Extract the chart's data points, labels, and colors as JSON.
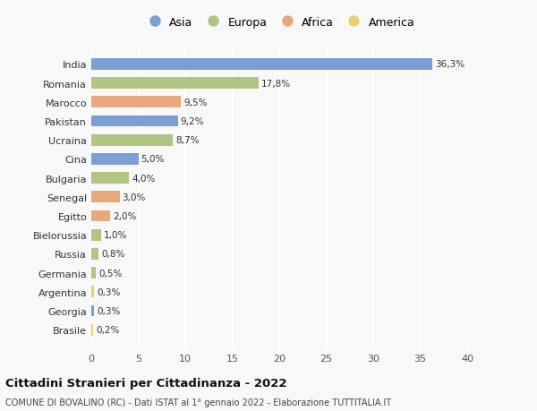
{
  "countries": [
    "India",
    "Romania",
    "Marocco",
    "Pakistan",
    "Ucraina",
    "Cina",
    "Bulgaria",
    "Senegal",
    "Egitto",
    "Bielorussia",
    "Russia",
    "Germania",
    "Argentina",
    "Georgia",
    "Brasile"
  ],
  "values": [
    36.3,
    17.8,
    9.5,
    9.2,
    8.7,
    5.0,
    4.0,
    3.0,
    2.0,
    1.0,
    0.8,
    0.5,
    0.3,
    0.3,
    0.2
  ],
  "labels": [
    "36,3%",
    "17,8%",
    "9,5%",
    "9,2%",
    "8,7%",
    "5,0%",
    "4,0%",
    "3,0%",
    "2,0%",
    "1,0%",
    "0,8%",
    "0,5%",
    "0,3%",
    "0,3%",
    "0,2%"
  ],
  "continents": [
    "Asia",
    "Europa",
    "Africa",
    "Asia",
    "Europa",
    "Asia",
    "Europa",
    "Africa",
    "Africa",
    "Europa",
    "Europa",
    "Europa",
    "America",
    "Asia",
    "America"
  ],
  "continent_colors": {
    "Asia": "#7b9fd4",
    "Europa": "#b0c484",
    "Africa": "#e8a87c",
    "America": "#e8d070"
  },
  "legend_order": [
    "Asia",
    "Europa",
    "Africa",
    "America"
  ],
  "xlim": [
    0,
    40
  ],
  "xticks": [
    0,
    5,
    10,
    15,
    20,
    25,
    30,
    35,
    40
  ],
  "title": "Cittadini Stranieri per Cittadinanza - 2022",
  "subtitle": "COMUNE DI BOVALINO (RC) - Dati ISTAT al 1° gennaio 2022 - Elaborazione TUTTITALIA.IT",
  "bg_color": "#f8f8f8",
  "grid_color": "#ffffff",
  "bar_height": 0.6
}
